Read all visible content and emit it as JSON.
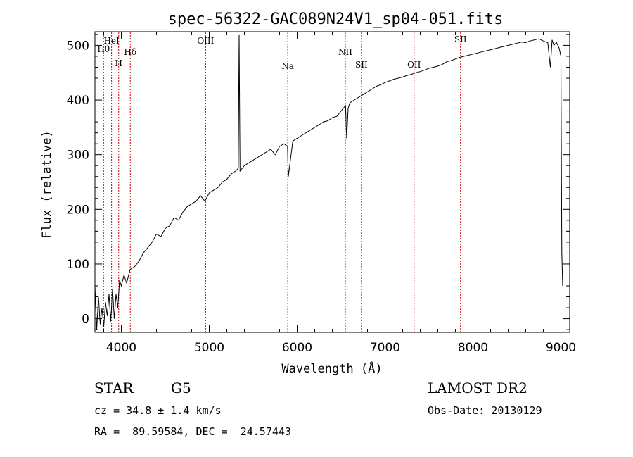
{
  "chart_data": {
    "type": "line",
    "title": "spec-56322-GAC089N24V1_sp04-051.fits",
    "xlabel": "Wavelength (Å)",
    "ylabel": "Flux (relative)",
    "xlim": [
      3700,
      9100
    ],
    "ylim": [
      -25,
      525
    ],
    "x_ticks": [
      4000,
      5000,
      6000,
      7000,
      8000,
      9000
    ],
    "y_ticks": [
      0,
      100,
      200,
      300,
      400,
      500
    ],
    "grid": false,
    "series": [
      {
        "x": [
          3700,
          3720,
          3740,
          3760,
          3780,
          3800,
          3820,
          3840,
          3860,
          3880,
          3900,
          3920,
          3940,
          3960,
          3980,
          4000,
          4030,
          4060,
          4100,
          4150,
          4200,
          4250,
          4300,
          4350,
          4400,
          4450,
          4500,
          4550,
          4600,
          4650,
          4700,
          4750,
          4800,
          4850,
          4900,
          4950,
          5000,
          5050,
          5100,
          5150,
          5200,
          5250,
          5300,
          5330,
          5340,
          5350,
          5400,
          5450,
          5500,
          5550,
          5600,
          5650,
          5700,
          5750,
          5800,
          5850,
          5890,
          5900,
          5950,
          6000,
          6050,
          6100,
          6150,
          6200,
          6250,
          6300,
          6350,
          6400,
          6450,
          6500,
          6550,
          6563,
          6580,
          6600,
          6650,
          6700,
          6750,
          6800,
          6850,
          6900,
          6950,
          7000,
          7050,
          7100,
          7150,
          7200,
          7250,
          7300,
          7350,
          7400,
          7450,
          7500,
          7550,
          7600,
          7650,
          7700,
          7750,
          7800,
          7850,
          7900,
          7950,
          8000,
          8050,
          8100,
          8150,
          8200,
          8250,
          8300,
          8350,
          8400,
          8450,
          8500,
          8550,
          8600,
          8650,
          8700,
          8750,
          8800,
          8850,
          8880,
          8900,
          8920,
          8950,
          8980,
          9000,
          9010,
          9020
        ],
        "y": [
          60,
          -20,
          40,
          -10,
          20,
          -15,
          30,
          5,
          45,
          -5,
          55,
          0,
          45,
          20,
          70,
          60,
          80,
          65,
          90,
          95,
          105,
          120,
          130,
          140,
          155,
          150,
          165,
          170,
          185,
          180,
          195,
          205,
          210,
          215,
          225,
          215,
          230,
          235,
          240,
          250,
          255,
          265,
          270,
          275,
          520,
          270,
          280,
          285,
          290,
          295,
          300,
          305,
          310,
          300,
          315,
          320,
          315,
          260,
          325,
          330,
          335,
          340,
          345,
          350,
          355,
          360,
          362,
          368,
          370,
          380,
          390,
          330,
          385,
          395,
          400,
          405,
          410,
          415,
          420,
          425,
          428,
          432,
          435,
          438,
          440,
          442,
          445,
          447,
          450,
          452,
          455,
          458,
          460,
          462,
          465,
          470,
          472,
          475,
          478,
          480,
          482,
          484,
          486,
          488,
          490,
          492,
          494,
          496,
          498,
          500,
          502,
          504,
          506,
          505,
          508,
          510,
          512,
          508,
          505,
          460,
          510,
          500,
          505,
          495,
          480,
          120,
          60
        ]
      }
    ],
    "line_markers": [
      {
        "name": "Hθ",
        "x": 3798
      },
      {
        "name": "HeI",
        "x": 3889
      },
      {
        "name": "H",
        "x": 3970
      },
      {
        "name": "Hδ",
        "x": 4102
      },
      {
        "name": "OIII",
        "x": 4959
      },
      {
        "name": "Na",
        "x": 5893
      },
      {
        "name": "NII",
        "x": 6548
      },
      {
        "name": "SII",
        "x": 6731
      },
      {
        "name": "OII",
        "x": 7330
      },
      {
        "name": "SII",
        "x": 7858
      }
    ],
    "marker_color": "#cc0000"
  },
  "info": {
    "object_class": "STAR",
    "subclass": "G5",
    "survey": "LAMOST DR2",
    "cz_line": "cz = 34.8 ± 1.4 km/s",
    "obs_date": "Obs-Date: 20130129",
    "coords": "RA =  89.59584, DEC =  24.57443"
  }
}
